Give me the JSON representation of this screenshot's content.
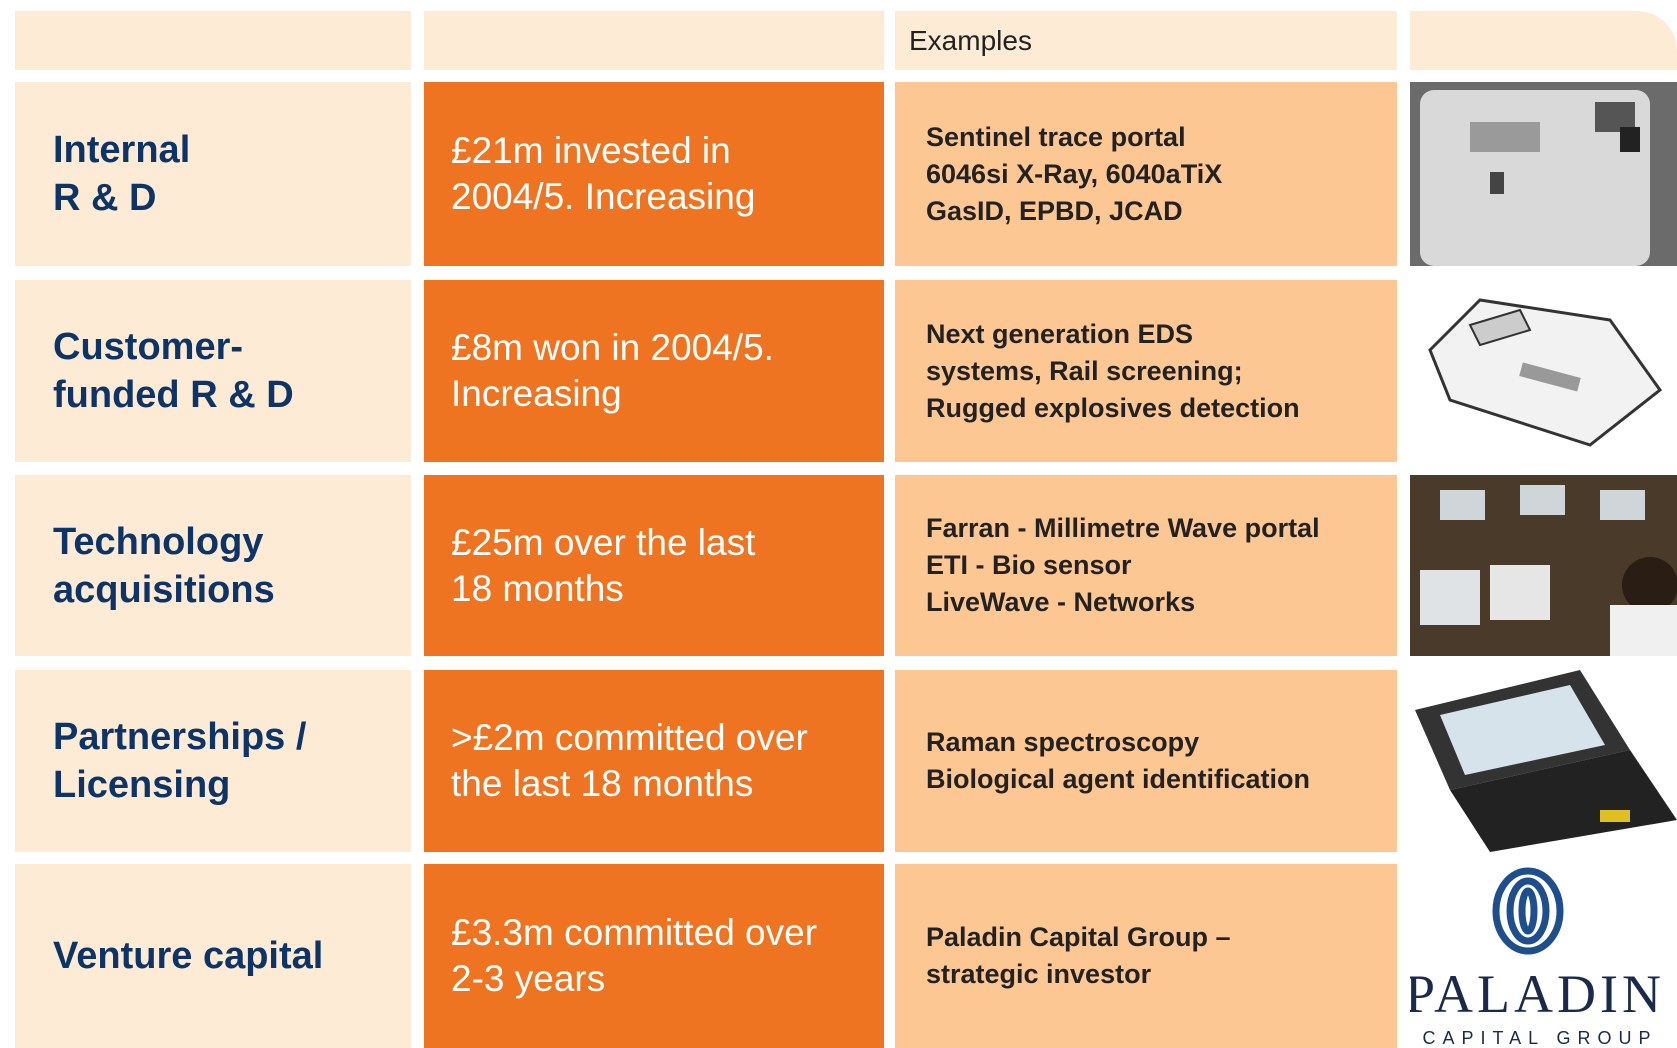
{
  "header": {
    "examples_label": "Examples"
  },
  "rows": [
    {
      "category": [
        "Internal",
        "R & D"
      ],
      "investment": [
        "£21m invested in",
        "2004/5. Increasing"
      ],
      "examples": [
        "Sentinel trace portal",
        "6046si X-Ray, 6040aTiX",
        "GasID, EPBD, JCAD"
      ]
    },
    {
      "category": [
        "Customer-",
        "funded R & D"
      ],
      "investment": [
        "£8m won in 2004/5.",
        "Increasing"
      ],
      "examples": [
        "Next generation EDS",
        "systems, Rail screening;",
        "Rugged explosives detection"
      ]
    },
    {
      "category": [
        "Technology",
        "acquisitions"
      ],
      "investment": [
        "£25m over the last",
        "18 months"
      ],
      "examples": [
        "Farran - Millimetre Wave portal",
        "ETI - Bio sensor",
        "LiveWave - Networks"
      ]
    },
    {
      "category": [
        "Partnerships /",
        "Licensing"
      ],
      "investment": [
        ">£2m committed over",
        "the last 18 months"
      ],
      "examples": [
        "Raman spectroscopy",
        "Biological agent identification"
      ]
    },
    {
      "category": [
        "Venture capital"
      ],
      "investment": [
        "£3.3m committed over",
        "2-3 years"
      ],
      "examples": [
        "Paladin Capital Group –",
        "strategic investor"
      ]
    }
  ],
  "logo": {
    "name": "PALADIN",
    "subtitle": "CAPITAL GROUP"
  }
}
